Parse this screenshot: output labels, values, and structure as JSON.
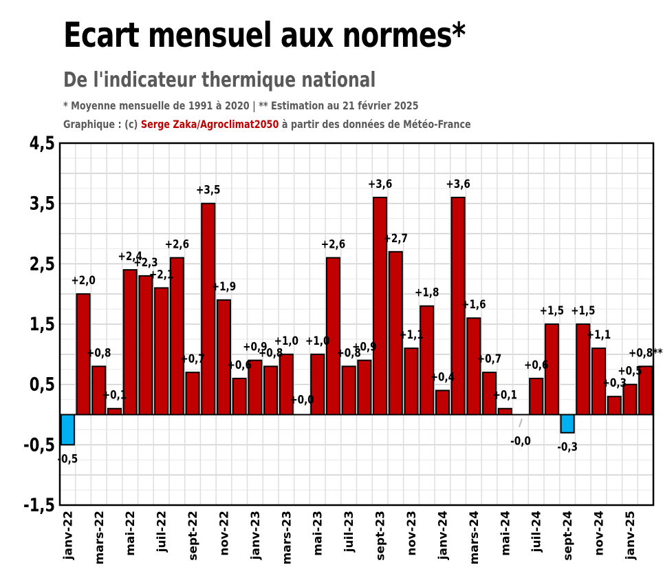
{
  "header": {
    "title": "Ecart mensuel aux normes*",
    "subtitle": "De l'indicateur thermique national",
    "note": "* Moyenne mensuelle de 1991 à 2020 | ** Estimation au 21 février 2025",
    "credit_prefix": "Graphique : (c) ",
    "credit_author": "Serge Zaka/Agroclimat2050",
    "credit_suffix": " à partir des données de Météo-France"
  },
  "colors": {
    "positive": "#c00000",
    "negative": "#00b0f0",
    "axis": "#000000",
    "grid": "#d9d9d9"
  },
  "chart_data": {
    "type": "bar",
    "title": "Ecart mensuel aux normes*",
    "subtitle": "De l'indicateur thermique national",
    "xlabel": "",
    "ylabel": "",
    "ylim": [
      -1.5,
      4.5
    ],
    "yticks": [
      "4,5",
      "3,5",
      "2,5",
      "1,5",
      "0,5",
      "-0,5",
      "-1,5"
    ],
    "ytick_values": [
      4.5,
      3.5,
      2.5,
      1.5,
      0.5,
      -0.5,
      -1.5
    ],
    "grid": true,
    "categories": [
      "janv-22",
      "févr-22",
      "mars-22",
      "avr-22",
      "mai-22",
      "juin-22",
      "juil-22",
      "août-22",
      "sept-22",
      "oct-22",
      "nov-22",
      "déc-22",
      "janv-23",
      "févr-23",
      "mars-23",
      "avr-23",
      "mai-23",
      "juin-23",
      "juil-23",
      "août-23",
      "sept-23",
      "oct-23",
      "nov-23",
      "déc-23",
      "janv-24",
      "févr-24",
      "mars-24",
      "avr-24",
      "mai-24",
      "juin-24",
      "juil-24",
      "août-24",
      "sept-24",
      "oct-24",
      "nov-24",
      "déc-24",
      "janv-25",
      "févr-25"
    ],
    "xtick_labels": [
      "janv-22",
      "",
      "mars-22",
      "",
      "mai-22",
      "",
      "juil-22",
      "",
      "sept-22",
      "",
      "nov-22",
      "",
      "janv-23",
      "",
      "mars-23",
      "",
      "mai-23",
      "",
      "juil-23",
      "",
      "sept-23",
      "",
      "nov-23",
      "",
      "janv-24",
      "",
      "mars-24",
      "",
      "mai-24",
      "",
      "juil-24",
      "",
      "sept-24",
      "",
      "nov-24",
      "",
      "janv-25",
      ""
    ],
    "values": [
      -0.5,
      2.0,
      0.8,
      0.1,
      2.4,
      2.3,
      2.1,
      2.6,
      0.7,
      3.5,
      1.9,
      0.6,
      0.9,
      0.8,
      1.0,
      0.0,
      1.0,
      2.6,
      0.8,
      0.9,
      3.6,
      2.7,
      1.1,
      1.8,
      0.4,
      3.6,
      1.6,
      0.7,
      0.1,
      -0.0,
      0.6,
      1.5,
      -0.3,
      1.5,
      1.1,
      0.3,
      0.5,
      0.8
    ],
    "data_labels": [
      "-0,5",
      "+2,0",
      "+0,8",
      "+0,1",
      "+2,4",
      "+2,3",
      "+2,1",
      "+2,6",
      "+0,7",
      "+3,5",
      "+1,9",
      "+0,6",
      "+0,9",
      "+0,8",
      "+1,0",
      "+0,0",
      "+1,0",
      "+2,6",
      "+0,8",
      "+0,9",
      "+3,6",
      "+2,7",
      "+1,1",
      "+1,8",
      "+0,4",
      "+3,6",
      "+1,6",
      "+0,7",
      "+0,1",
      "-0,0",
      "+0,6",
      "+1,5",
      "-0,3",
      "+1,5",
      "+1,1",
      "+0,3",
      "+0,5",
      "+0,8**"
    ]
  }
}
